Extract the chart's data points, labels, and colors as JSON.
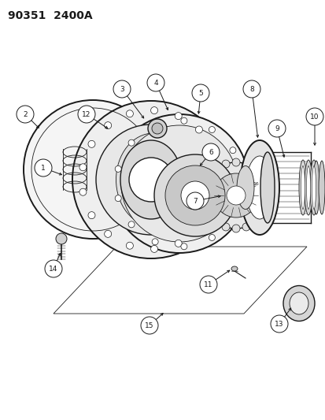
{
  "title": "90351  2400A",
  "bg_color": "#ffffff",
  "line_color": "#1a1a1a",
  "title_fontsize": 10,
  "fig_width": 4.14,
  "fig_height": 5.33,
  "dpi": 100
}
